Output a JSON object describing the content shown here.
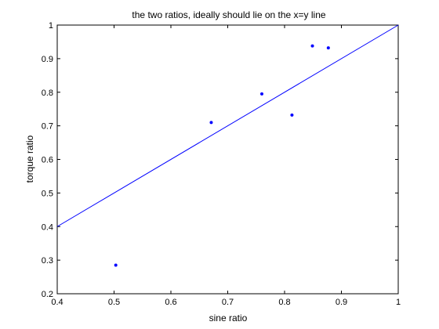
{
  "chart_data": {
    "type": "scatter",
    "title": "the two ratios, ideally should lie on the x=y line",
    "xlabel": "sine ratio",
    "ylabel": "torque ratio",
    "xlim": [
      0.4,
      1.0
    ],
    "ylim": [
      0.2,
      1.0
    ],
    "xticks": [
      "0.4",
      "0.5",
      "0.6",
      "0.7",
      "0.8",
      "0.9",
      "1"
    ],
    "yticks": [
      "0.2",
      "0.3",
      "0.4",
      "0.5",
      "0.6",
      "0.7",
      "0.8",
      "0.9",
      "1"
    ],
    "grid": false,
    "series": [
      {
        "marker": "dot",
        "color": "#0000ff",
        "x": [
          0.503,
          0.671,
          0.76,
          0.813,
          0.849,
          0.877
        ],
        "y": [
          0.285,
          0.71,
          0.795,
          0.732,
          0.938,
          0.932
        ]
      }
    ],
    "reference_line": {
      "color": "#0000ff",
      "x": [
        0.4,
        1.0
      ],
      "y": [
        0.4,
        1.0
      ]
    }
  }
}
